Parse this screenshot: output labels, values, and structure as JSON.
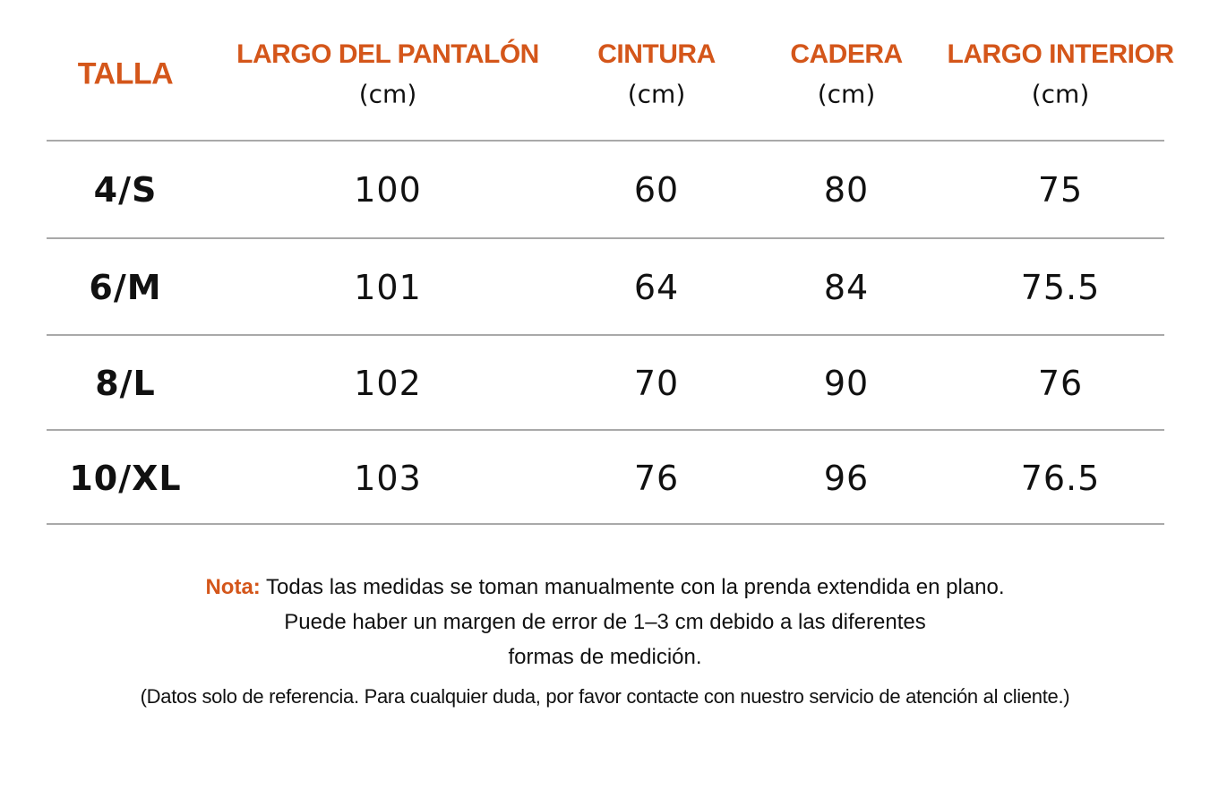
{
  "table": {
    "headers": [
      {
        "title": "TALLA"
      },
      {
        "title": "LARGO DEL PANTALÓN",
        "unit": "(cm)"
      },
      {
        "title": "CINTURA",
        "unit": "(cm)"
      },
      {
        "title": "CADERA",
        "unit": "(cm)"
      },
      {
        "title": "LARGO INTERIOR",
        "unit": "(cm)"
      }
    ],
    "rows": [
      [
        "4/S",
        100,
        60,
        80,
        75
      ],
      [
        "6/M",
        101,
        64,
        84,
        75.5
      ],
      [
        "8/L",
        102,
        70,
        90,
        76
      ],
      [
        "10/XL",
        103,
        76,
        96,
        76.5
      ]
    ]
  },
  "note": {
    "label": "Nota:",
    "lines": [
      "Todas las medidas se toman manualmente con la prenda extendida en plano.",
      "Puede haber un margen de error de 1–3 cm debido a las diferentes",
      "formas de medición."
    ],
    "disclaimer": "(Datos solo de referencia. Para cualquier duda, por favor contacte con nuestro servicio de atención al cliente.)"
  }
}
